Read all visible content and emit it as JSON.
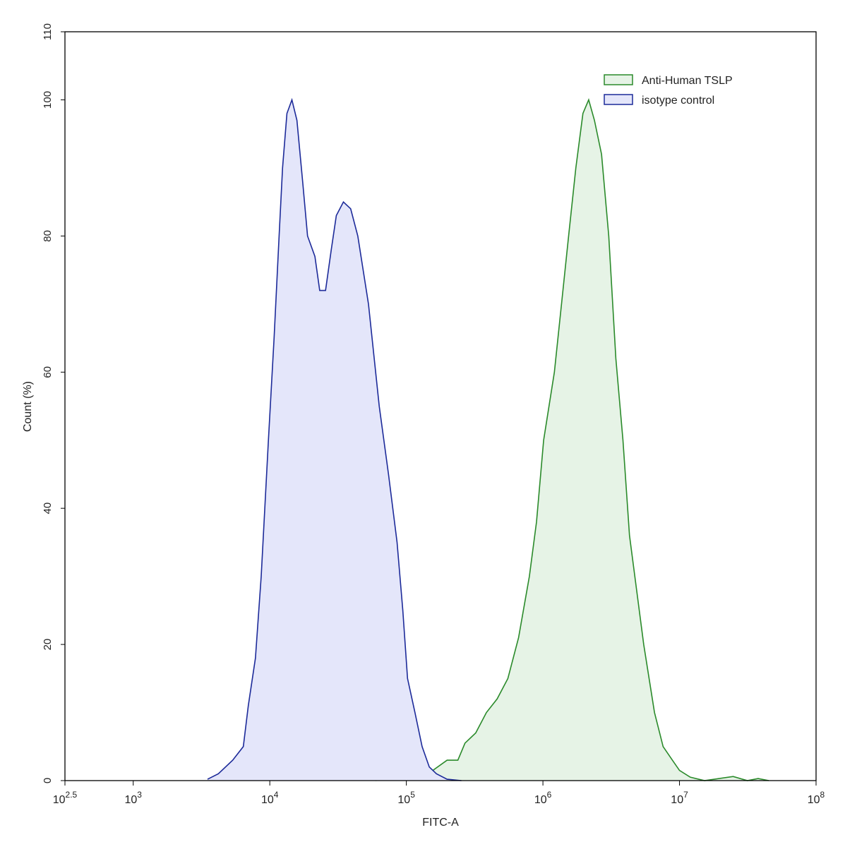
{
  "chart_data": {
    "type": "area",
    "xlabel": "FITC-A",
    "ylabel": "Count  (%)",
    "xscale": "log",
    "xlim": [
      316.227766,
      100000000
    ],
    "ylim": [
      0,
      110
    ],
    "xticks": [
      {
        "value": 316.227766,
        "label": "10",
        "sup": "2.5"
      },
      {
        "value": 1000,
        "label": "10",
        "sup": "3"
      },
      {
        "value": 10000,
        "label": "10",
        "sup": "4"
      },
      {
        "value": 100000,
        "label": "10",
        "sup": "5"
      },
      {
        "value": 1000000,
        "label": "10",
        "sup": "6"
      },
      {
        "value": 10000000,
        "label": "10",
        "sup": "7"
      },
      {
        "value": 100000000,
        "label": "10",
        "sup": "8"
      }
    ],
    "yticks": [
      0,
      20,
      40,
      60,
      80,
      100,
      110
    ],
    "legend": "upper right",
    "series": [
      {
        "name": "Anti-Human TSLP",
        "color": "#2a8a2a",
        "fill": "#e6f3e6",
        "x": [
          59600,
          75900,
          96400,
          122700,
          156300,
          198700,
          238300,
          268700,
          322000,
          385700,
          462000,
          553700,
          663300,
          795700,
          897500,
          1012000,
          1213000,
          1368000,
          1542000,
          1742000,
          1963000,
          2163000,
          2383000,
          2687000,
          3034000,
          3420000,
          3855000,
          4305000,
          4853000,
          5470000,
          6561000,
          7586000,
          8872000,
          10000000,
          11990000,
          15250000,
          24720000,
          31410000,
          37670000,
          45080000
        ],
        "values": [
          0,
          0.5,
          1.5,
          1,
          1.5,
          3,
          3,
          5.5,
          7,
          10,
          12,
          15,
          21,
          30,
          38,
          50,
          60,
          70,
          80,
          90,
          98,
          100,
          97,
          92,
          80,
          62,
          50,
          36,
          28,
          20,
          10,
          5,
          3,
          1.5,
          0.5,
          0,
          0.6,
          0,
          0.3,
          0
        ]
      },
      {
        "name": "isotype control",
        "color": "#1c2a99",
        "fill": "#e4e6fa",
        "x": [
          3500,
          4200,
          5350,
          6400,
          6960,
          7850,
          8650,
          9770,
          10750,
          11700,
          12400,
          13350,
          14520,
          15800,
          17400,
          18900,
          21400,
          23200,
          25600,
          28200,
          30700,
          34600,
          39100,
          44100,
          52800,
          63300,
          74000,
          85500,
          94200,
          102000,
          115600,
          130400,
          147200,
          166000,
          198700,
          252900
        ],
        "values": [
          0.2,
          1,
          3,
          5,
          11,
          18,
          30,
          50,
          65,
          80,
          90,
          98,
          100,
          97,
          88,
          80,
          77,
          72,
          72,
          78,
          83,
          85,
          84,
          80,
          70,
          55,
          45,
          35,
          25,
          15,
          10,
          5,
          2,
          1,
          0.2,
          0
        ]
      }
    ]
  }
}
